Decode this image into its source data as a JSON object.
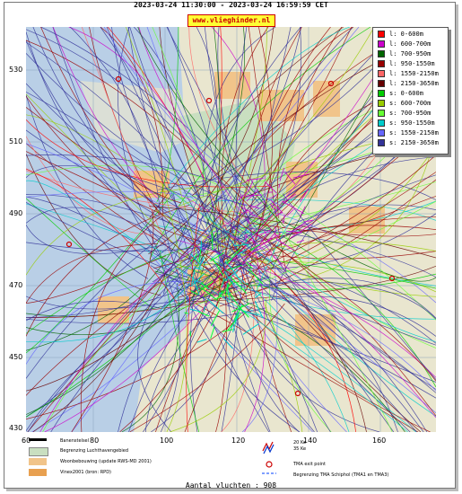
{
  "header": {
    "period": "2023-03-24 11:30:00 - 2023-03-24 16:59:59 CET",
    "site": "www.vlieghinder.nl"
  },
  "axes": {
    "y_ticks": [
      "530",
      "510",
      "490",
      "470",
      "450",
      "430"
    ],
    "x_ticks": [
      "60",
      "80",
      "100",
      "120",
      "140",
      "160"
    ]
  },
  "legend": {
    "items": [
      {
        "label": "l: 0-600m",
        "color": "#ff0000"
      },
      {
        "label": "l: 600-700m",
        "color": "#cc00cc"
      },
      {
        "label": "l: 700-950m",
        "color": "#006600"
      },
      {
        "label": "l: 950-1550m",
        "color": "#990000"
      },
      {
        "label": "l: 1550-2150m",
        "color": "#ff6666"
      },
      {
        "label": "l: 2150-3650m",
        "color": "#660000"
      },
      {
        "label": "s: 0-600m",
        "color": "#00cc00"
      },
      {
        "label": "s: 600-700m",
        "color": "#99cc00"
      },
      {
        "label": "s: 700-950m",
        "color": "#66ff33"
      },
      {
        "label": "s: 950-1550m",
        "color": "#00cccc"
      },
      {
        "label": "s: 1550-2150m",
        "color": "#6666ff"
      },
      {
        "label": "s: 2150-3650m",
        "color": "#333399"
      }
    ]
  },
  "map_legend": {
    "runways": "Banenstelsel",
    "airport_boundary": "Begrenzing Luchthavengebied",
    "housing": "Woonbebouwing (update RWS-MD 2001)",
    "vinex": "Vinex2001 (bron: RPD)",
    "noise_20": "20 Ke",
    "noise_35": "35 Ke",
    "tma_exit": "TMA exit point",
    "tma_boundary": "Begrenzing TMA Schiphol  (TMA1 en TMA3)"
  },
  "footer": {
    "count": "Aantal vluchten : 908"
  }
}
